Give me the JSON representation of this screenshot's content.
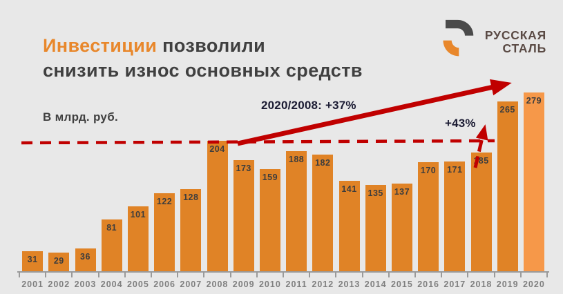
{
  "slide": {
    "title": {
      "highlight": "Инвестиции",
      "rest": "позволили",
      "line2": "снизить износ основных средств"
    },
    "units_label": "В млрд. руб.",
    "logo": {
      "line1": "РУССКАЯ",
      "line2": "СТАЛЬ"
    },
    "annotations": {
      "total_growth": "2020/2008: +37%",
      "recent_growth": "+43%"
    },
    "colors": {
      "background": "#e8e8e8",
      "bar": "#e08326",
      "bar_highlight": "#f69849",
      "accent_red": "#c00000",
      "title_orange": "#e8872b",
      "title_dark": "#404040",
      "year_label": "#7f7f7f",
      "value_label": "#3d3d3d",
      "logo_text": "#5a4a44",
      "annotation_text": "#1b1b33"
    }
  },
  "chart_data": {
    "type": "bar",
    "title": "Инвестиции позволили снизить износ основных средств",
    "ylabel": "В млрд. руб.",
    "categories": [
      "2001",
      "2002",
      "2003",
      "2004",
      "2005",
      "2006",
      "2007",
      "2008",
      "2009",
      "2010",
      "2011",
      "2012",
      "2013",
      "2014",
      "2015",
      "2016",
      "2017",
      "2018",
      "2019",
      "2020"
    ],
    "values": [
      31,
      29,
      36,
      81,
      101,
      122,
      128,
      204,
      173,
      159,
      188,
      182,
      141,
      135,
      137,
      170,
      171,
      185,
      265,
      279
    ],
    "ylim": [
      0,
      300
    ],
    "grid": false,
    "legend": false,
    "highlighted_category": "2020",
    "reference_line": {
      "value": 204,
      "style": "dashed",
      "color": "#c00000",
      "anchored_to": "2008"
    },
    "annotations": [
      {
        "text": "2020/2008: +37%",
        "type": "trend-arrow",
        "from_category": "2008",
        "to_category": "2020"
      },
      {
        "text": "+43%",
        "type": "growth-arrow",
        "from_category": "2018",
        "to_category": "2019"
      }
    ]
  }
}
